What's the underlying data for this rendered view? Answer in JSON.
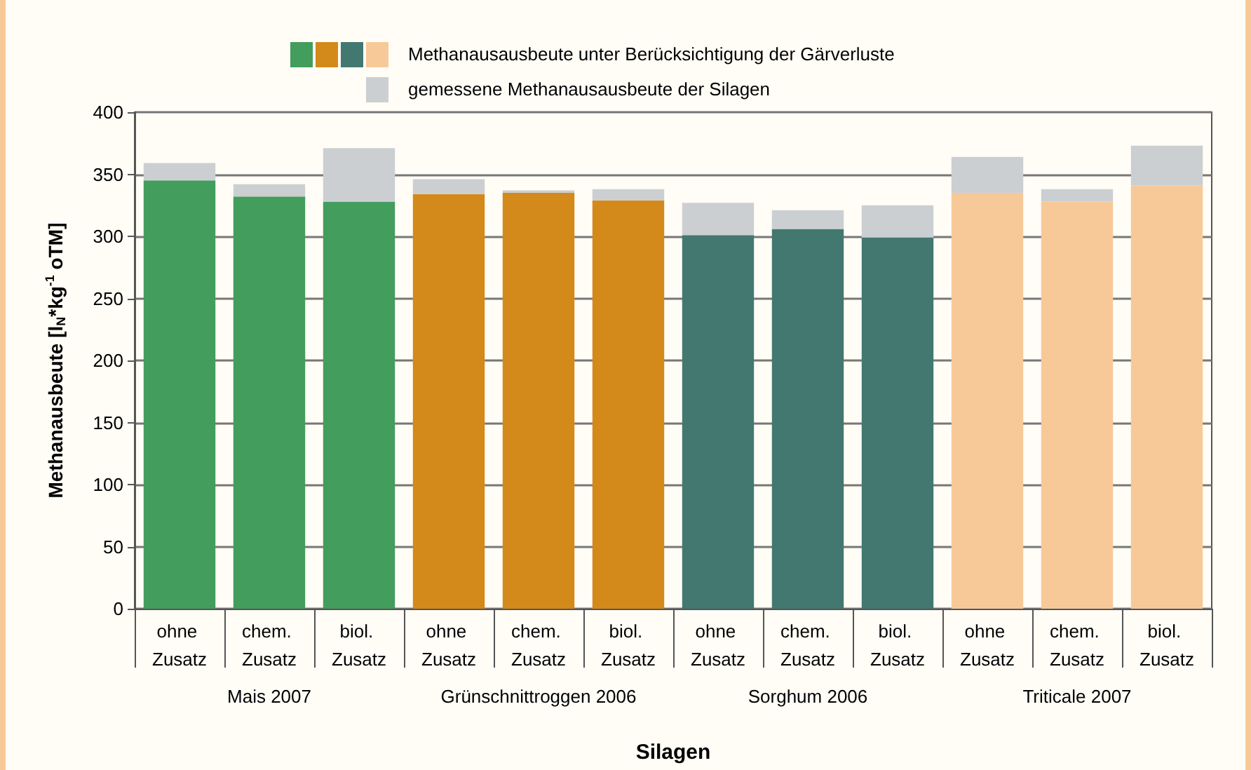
{
  "chart_data": {
    "type": "bar",
    "stacked": true,
    "xlabel": "Silagen",
    "ylabel": "Methanausbeute [l$_{N}$*kg$^{-1}$ oTM]",
    "categories": [
      "ohne Zusatz",
      "chem. Zusatz",
      "biol. Zusatz",
      "ohne Zusatz",
      "chem. Zusatz",
      "biol. Zusatz",
      "ohne Zusatz",
      "chem. Zusatz",
      "biol. Zusatz",
      "ohne Zusatz",
      "chem. Zusatz",
      "biol. Zusatz"
    ],
    "series": [
      {
        "name": "Methanausausbeute unter Berücksichtigung der Gärverluste",
        "colors": [
          "#439d5c",
          "#439d5c",
          "#439d5c",
          "#d38a1a",
          "#d38a1a",
          "#d38a1a",
          "#427870",
          "#427870",
          "#427870",
          "#f7c998",
          "#f7c998",
          "#f7c998"
        ],
        "values": [
          345,
          332,
          328,
          334,
          335,
          329,
          301,
          306,
          299,
          335,
          328,
          341
        ]
      },
      {
        "name": "gemessene Methanausausbeute der Silagen",
        "color": "#cbcfd2",
        "values": [
          14,
          10,
          43,
          12,
          2,
          9,
          26,
          15,
          26,
          29,
          10,
          32
        ]
      }
    ],
    "annotations": [
      "Mais 2007",
      "Grünschnittroggen 2006",
      "Sorghum 2006",
      "Triticale 2007"
    ],
    "ylim": [
      0,
      400
    ],
    "yticks": [
      0,
      50,
      100,
      150,
      200,
      250,
      300,
      350,
      400
    ],
    "grid": "y",
    "legend": "top"
  }
}
